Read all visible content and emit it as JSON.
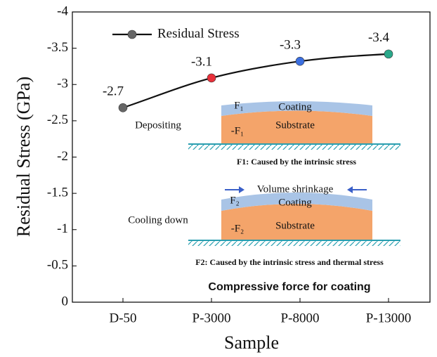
{
  "chart_data": {
    "type": "line",
    "x_label": "Sample",
    "y_label": "Residual Stress (GPa)",
    "categories": [
      "D-50",
      "P-3000",
      "P-8000",
      "P-13000"
    ],
    "series": [
      {
        "name": "Residual Stress",
        "color": "#111111",
        "values": [
          -2.68,
          -3.09,
          -3.32,
          -3.42
        ],
        "value_labels": [
          "-2.7",
          "-3.1",
          "-3.3",
          "-3.4"
        ],
        "marker_colors": [
          "#666666",
          "#e8303a",
          "#3b6fe0",
          "#2aa88a"
        ]
      }
    ],
    "ylim": [
      0,
      -4
    ],
    "yticks": [
      0,
      -0.5,
      -1,
      -1.5,
      -2,
      -2.5,
      -3,
      -3.5,
      -4
    ],
    "legend": "top-left",
    "annotations": [
      "Depositing",
      "F₁",
      "Coating",
      "Substrate",
      "-F₁",
      "F1: Caused by the intrinsic stress",
      "Volume shrinkage",
      "F₂",
      "Coating",
      "Cooling down",
      "Substrate",
      "-F₂",
      "F2: Caused by the intrinsic stress and thermal stress",
      "Compressive force for coating"
    ]
  }
}
